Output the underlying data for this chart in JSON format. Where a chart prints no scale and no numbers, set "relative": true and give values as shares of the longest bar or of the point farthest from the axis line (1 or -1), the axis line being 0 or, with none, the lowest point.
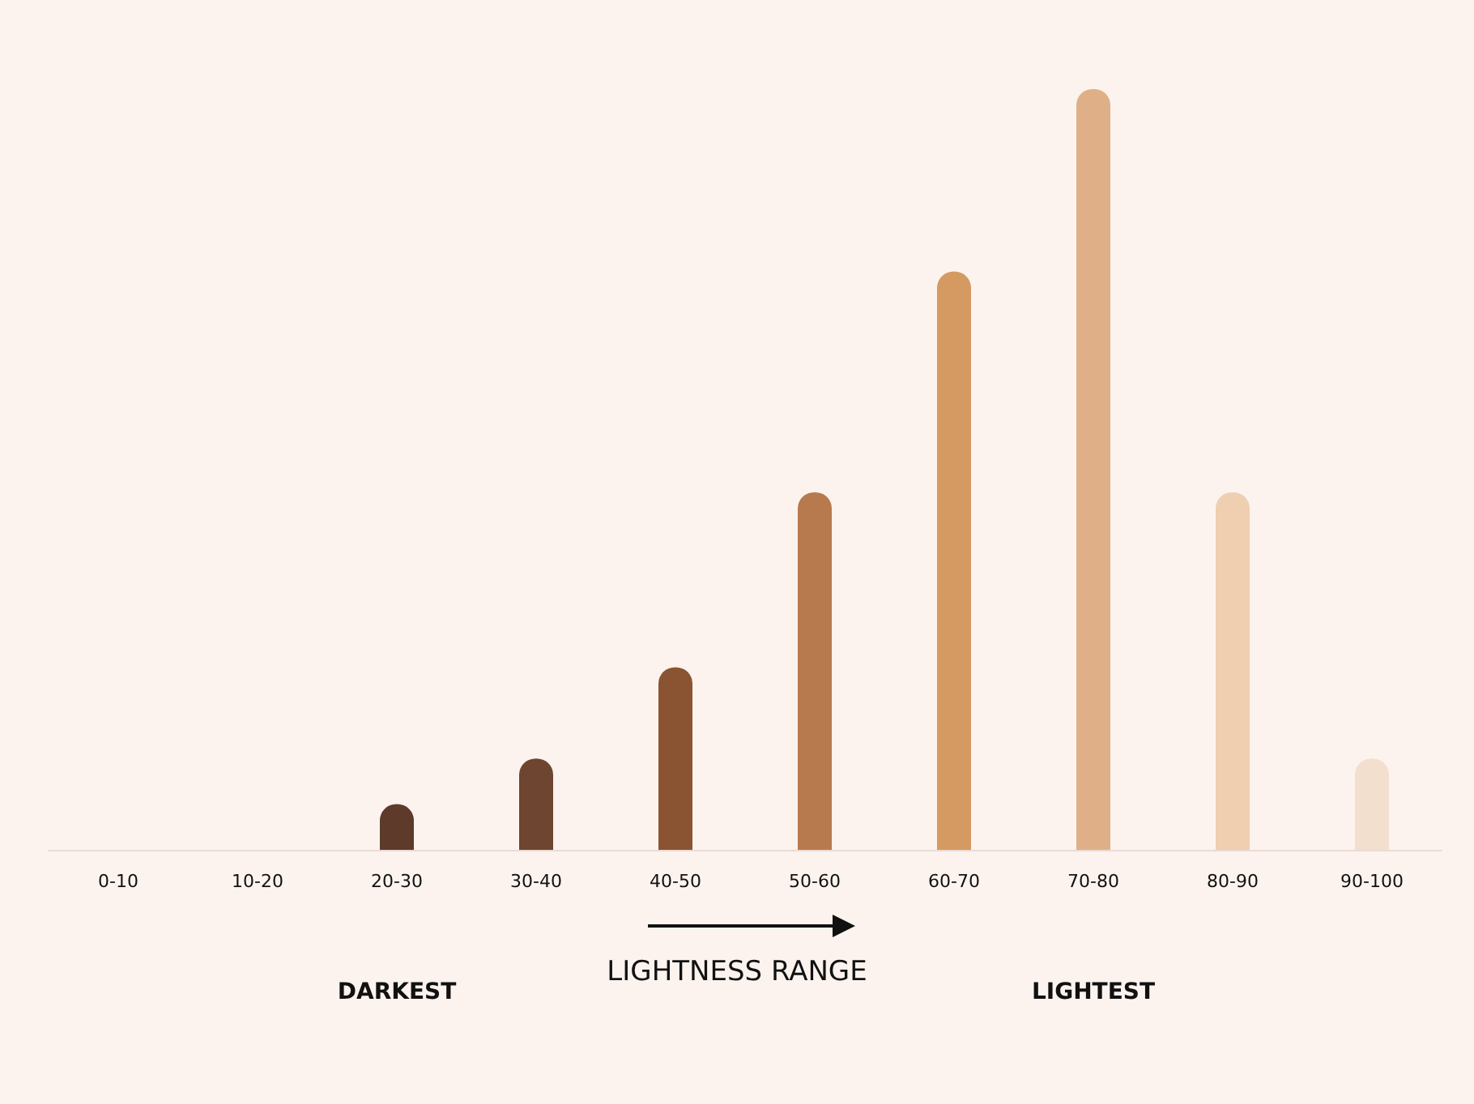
{
  "chart_data": {
    "type": "bar",
    "relative": true,
    "xlabel": "LIGHTNESS RANGE",
    "categories": [
      "0-10",
      "10-20",
      "20-30",
      "30-40",
      "40-50",
      "50-60",
      "60-70",
      "70-80",
      "80-90",
      "90-100"
    ],
    "values": [
      0,
      0,
      0.06,
      0.12,
      0.24,
      0.47,
      0.76,
      1,
      0.47,
      0.12
    ],
    "colors": [
      "#5e3a2a",
      "#5e3a2a",
      "#5e3a2a",
      "#6e4530",
      "#8a5432",
      "#b77a4e",
      "#d49a62",
      "#dfb087",
      "#efcfb0",
      "#f2dfce"
    ],
    "annotations": [
      "DARKEST",
      "LIGHTEST"
    ]
  }
}
